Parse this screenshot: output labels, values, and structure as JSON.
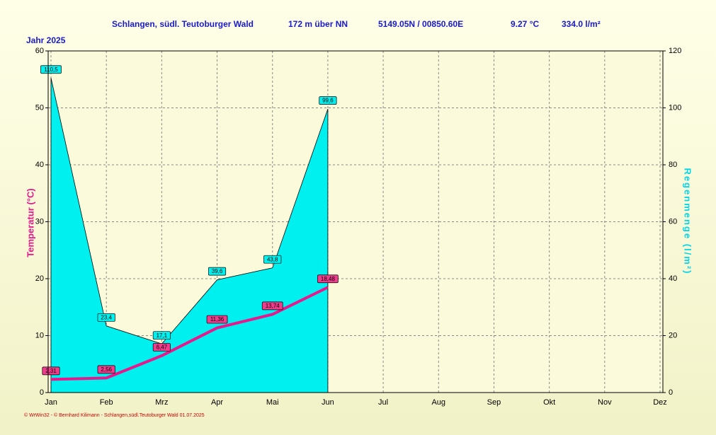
{
  "header": {
    "title": "Schlangen,  südl. Teutoburger Wald",
    "elevation": "172 m über NN",
    "coordinates": "5149.05N / 00850.60E",
    "mean_temperature": "9.27 °C",
    "total_rain": "334.0 l/m²"
  },
  "footer": "© WrWin32 - © Bernhard Kilimann - Schlangen,südl.Teutoburger Wald  01.07.2025",
  "chart_data": {
    "type": "line",
    "subtitle": "Jahr  2025",
    "ylabel": "Temperatur  (°C)",
    "y2label": "Regenmenge  (l/m²)",
    "categories": [
      "Jan",
      "Feb",
      "Mrz",
      "Apr",
      "Mai",
      "Jun",
      "Jul",
      "Aug",
      "Sep",
      "Okt",
      "Nov",
      "Dez"
    ],
    "ylim": [
      0,
      60
    ],
    "yticks": [
      0,
      10,
      20,
      30,
      40,
      50,
      60
    ],
    "y2lim": [
      0,
      120
    ],
    "y2ticks": [
      0,
      20,
      40,
      60,
      80,
      100,
      120
    ],
    "grid": true,
    "series": [
      {
        "name": "Regenmenge",
        "type": "area",
        "axis": "y2",
        "color": "#00f0f0",
        "values": [
          110.5,
          23.4,
          17.1,
          39.6,
          43.8,
          99.6,
          null,
          null,
          null,
          null,
          null,
          null
        ],
        "value_labels": [
          "110,5",
          "23,4",
          "17,1",
          "39,6",
          "43,8",
          "99,6",
          null,
          null,
          null,
          null,
          null,
          null
        ]
      },
      {
        "name": "Temperatur",
        "type": "line",
        "color": "#e8188c",
        "values": [
          2.31,
          2.56,
          6.47,
          11.36,
          13.74,
          18.48,
          null,
          null,
          null,
          null,
          null,
          null
        ],
        "value_labels": [
          "2,31",
          "2,56",
          "6,47",
          "11,36",
          "13,74",
          "18,48",
          null,
          null,
          null,
          null,
          null,
          null
        ]
      }
    ]
  }
}
